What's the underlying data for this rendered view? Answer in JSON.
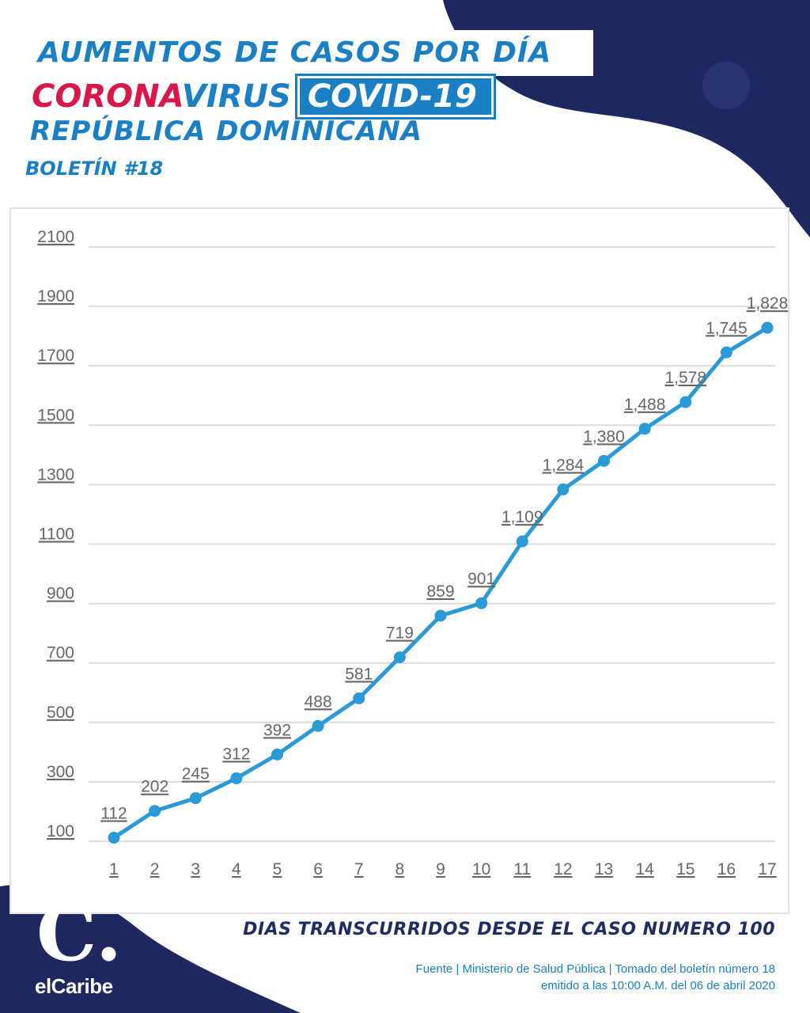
{
  "header": {
    "title_line1": "AUMENTOS DE CASOS POR DÍA",
    "title_corona": "CORONA",
    "title_virus": "VIRUS",
    "title_covid": "COVID-19",
    "title_country": "REPÚBLICA DOMINICANA",
    "bulletin": "BOLETÍN #18"
  },
  "footer": {
    "source_line1": "Fuente | Ministerio de Salud Pública | Tomado del boletín número 18",
    "source_line2": "emitido a las 10:00 A.M. del 06 de abril 2020",
    "logo_mark": "C.",
    "logo_text": "elCaribe"
  },
  "colors": {
    "accent_blue": "#1b7fc4",
    "brand_red": "#d7194a",
    "navy": "#1e2860",
    "line": "#2a9bd6",
    "grid": "#dcdcdc",
    "tick_text": "#666666"
  },
  "chart_data": {
    "type": "line",
    "title": "AUMENTOS DE CASOS POR DÍA",
    "xlabel": "DIAS TRANSCURRIDOS DESDE EL CASO NUMERO 100",
    "ylabel": "",
    "categories": [
      "1",
      "2",
      "3",
      "4",
      "5",
      "6",
      "7",
      "8",
      "9",
      "10",
      "11",
      "12",
      "13",
      "14",
      "15",
      "16",
      "17"
    ],
    "series": [
      {
        "values": [
          112,
          202,
          245,
          312,
          392,
          488,
          581,
          719,
          859,
          901,
          1109,
          1284,
          1380,
          1488,
          1578,
          1745,
          1828
        ],
        "data_labels": [
          "112",
          "202",
          "245",
          "312",
          "392",
          "488",
          "581",
          "719",
          "859",
          "901",
          "1,109",
          "1,284",
          "1,380",
          "1,488",
          "1,578",
          "1,745",
          "1,828"
        ]
      }
    ],
    "yticks": [
      100,
      300,
      500,
      700,
      900,
      1100,
      1300,
      1500,
      1700,
      1900,
      2100
    ],
    "ylim": [
      100,
      2100
    ],
    "grid": true,
    "legend": "none"
  }
}
